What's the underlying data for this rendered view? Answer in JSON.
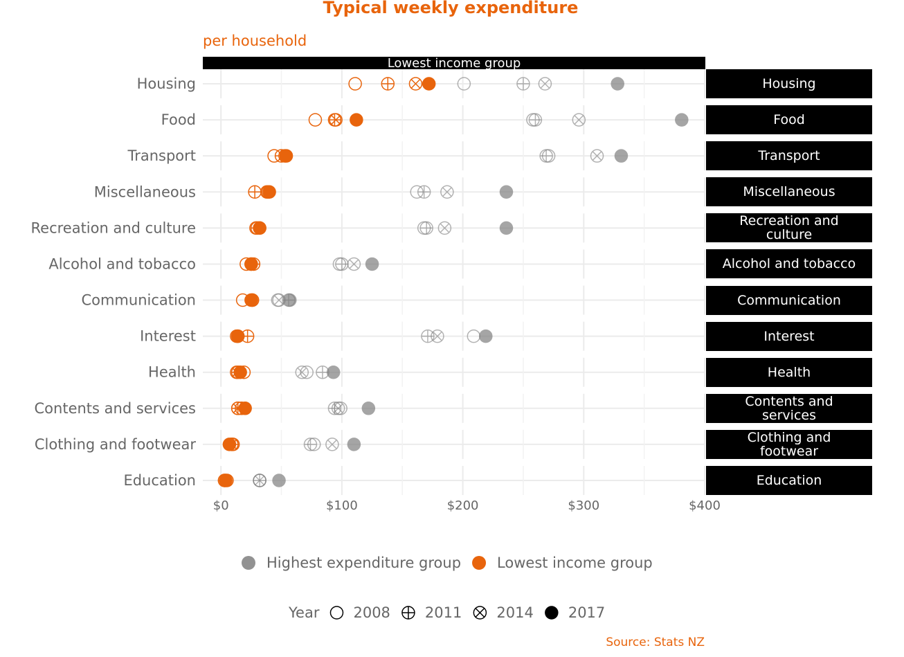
{
  "chart_data": {
    "type": "dot",
    "title": "Typical weekly expenditure",
    "subtitle": "per household",
    "source": "Source: Stats NZ",
    "categories": [
      "Housing",
      "Food",
      "Transport",
      "Miscellaneous",
      "Recreation and culture",
      "Alcohol and tobacco",
      "Communication",
      "Interest",
      "Health",
      "Contents and services",
      "Clothing and footwear",
      "Education"
    ],
    "xlim": [
      -15,
      400
    ],
    "xticks": [
      {
        "value": 0,
        "label": "$0"
      },
      {
        "value": 100,
        "label": "$100"
      },
      {
        "value": 200,
        "label": "$200"
      },
      {
        "value": 300,
        "label": "$300"
      },
      {
        "value": 400,
        "label": "$400"
      }
    ],
    "minor_xticks": [
      50,
      150,
      250,
      350
    ],
    "grid": true,
    "year_legend": {
      "title": "Year",
      "entries": [
        {
          "name": "2008",
          "marker": "open"
        },
        {
          "name": "2011",
          "marker": "plus"
        },
        {
          "name": "2014",
          "marker": "cross"
        },
        {
          "name": "2017",
          "marker": "filled"
        }
      ]
    },
    "series": [
      {
        "name": "Highest expenditure group",
        "color": "#7f7f7f",
        "values": [
          [
            201,
            258,
            271,
            162,
            168,
            98,
            47,
            209,
            71,
            99,
            77,
            32
          ],
          [
            250,
            260,
            269,
            168,
            170,
            100,
            56,
            171,
            84,
            94,
            74,
            32
          ],
          [
            268,
            296,
            311,
            187,
            185,
            110,
            48,
            179,
            67,
            97,
            92,
            32
          ],
          [
            328,
            381,
            331,
            236,
            236,
            125,
            57,
            219,
            93,
            122,
            110,
            48
          ]
        ]
      },
      {
        "name": "Lowest income group",
        "color": "#e8640c",
        "values": [
          [
            111,
            78,
            44,
            38,
            29,
            21,
            18,
            13,
            19,
            17,
            9,
            3
          ],
          [
            138,
            94,
            50,
            28,
            30,
            27,
            26,
            22,
            14,
            14,
            10,
            3
          ],
          [
            161,
            95,
            53,
            39,
            32,
            25,
            26,
            14,
            13,
            14,
            9,
            5
          ],
          [
            172,
            112,
            54,
            40,
            32,
            25,
            25,
            14,
            16,
            20,
            7,
            4
          ]
        ]
      }
    ]
  }
}
